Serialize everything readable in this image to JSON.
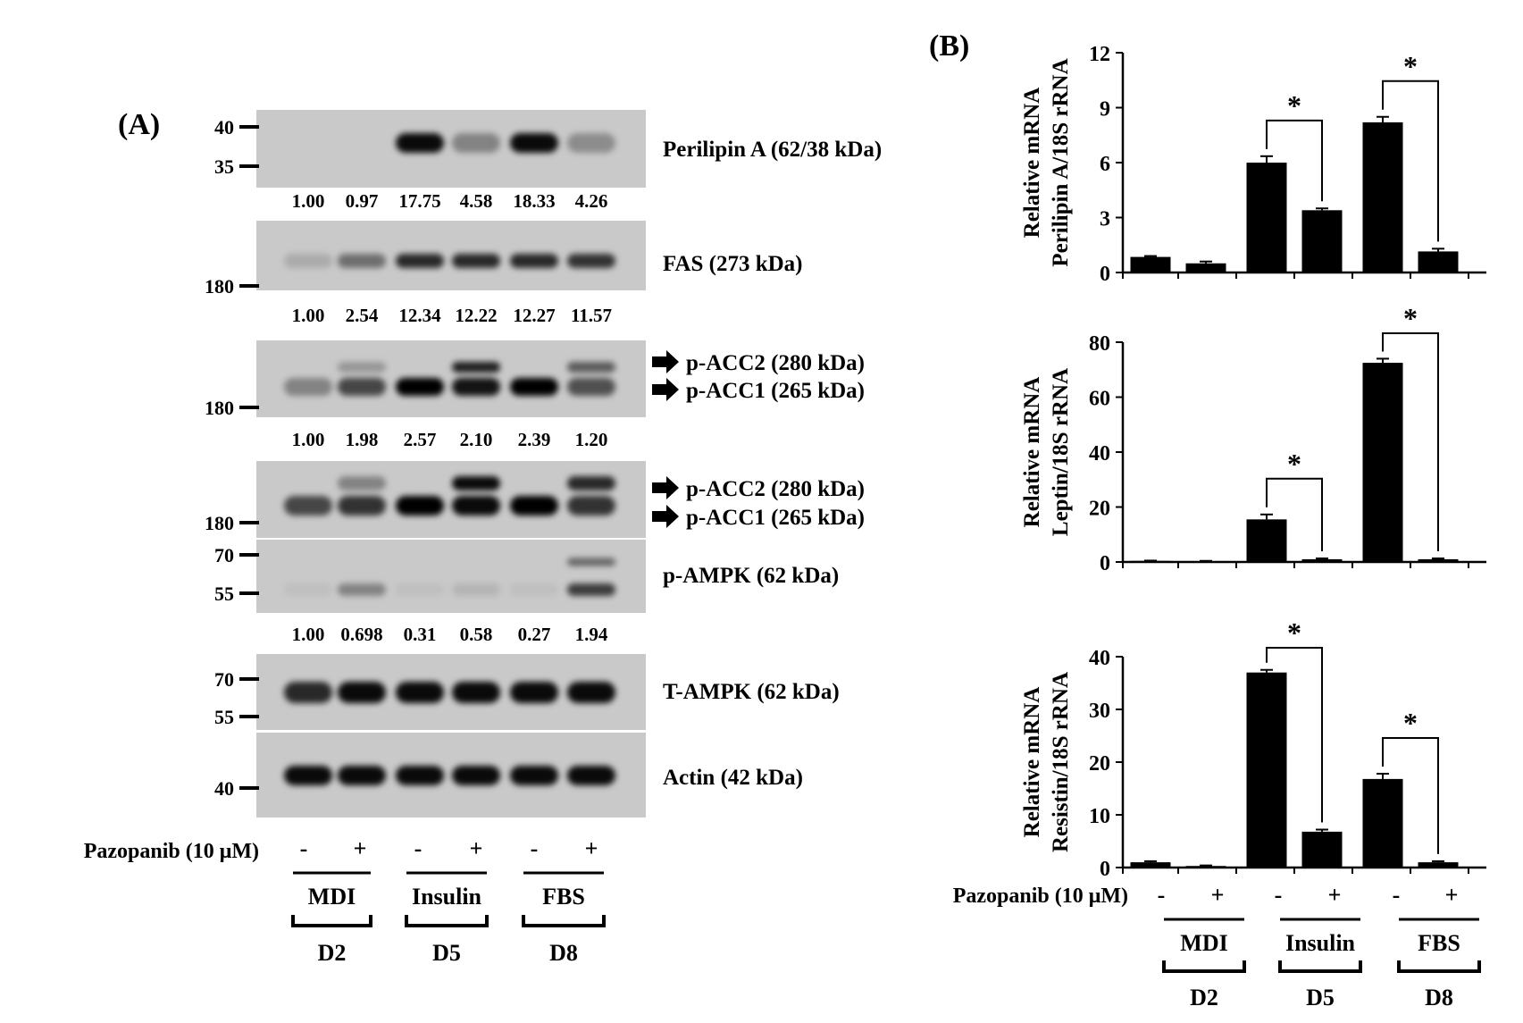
{
  "panel_a": {
    "label": "(A)",
    "blots": [
      {
        "name": "Perilipin A (62/38 kDa)",
        "markers": [
          "40",
          "35"
        ],
        "quant": [
          "1.00",
          "0.97",
          "17.75",
          "4.58",
          "18.33",
          "4.26"
        ],
        "intensity": [
          0.0,
          0.0,
          0.95,
          0.35,
          0.95,
          0.3
        ]
      },
      {
        "name": "FAS (273 kDa)",
        "markers": [
          "180"
        ],
        "quant": [
          "1.00",
          "2.54",
          "12.34",
          "12.22",
          "12.27",
          "11.57"
        ],
        "intensity": [
          0.15,
          0.45,
          0.8,
          0.8,
          0.8,
          0.75
        ]
      },
      {
        "name": "p-ACC2 (280 kDa)",
        "name2": "p-ACC1 (265 kDa)",
        "markers": [
          "180"
        ],
        "quant": [
          "1.00",
          "1.98",
          "2.57",
          "2.10",
          "2.39",
          "1.20"
        ],
        "intensity": [
          0.35,
          0.65,
          1.0,
          0.9,
          1.0,
          0.6
        ],
        "upper_intensity": [
          0.0,
          0.25,
          0.0,
          0.85,
          0.0,
          0.55
        ]
      },
      {
        "name": "p-ACC2 (280 kDa)",
        "name2": "p-ACC1 (265 kDa)",
        "markers": [
          "180"
        ],
        "intensity": [
          0.65,
          0.75,
          1.0,
          0.95,
          1.0,
          0.75
        ],
        "upper_intensity": [
          0.0,
          0.35,
          0.0,
          0.95,
          0.0,
          0.8
        ]
      },
      {
        "name": "p-AMPK (62 kDa)",
        "markers": [
          "70",
          "55"
        ],
        "quant": [
          "1.00",
          "0.698",
          "0.31",
          "0.58",
          "0.27",
          "1.94"
        ],
        "intensity": [
          0.05,
          0.35,
          0.05,
          0.1,
          0.05,
          0.7
        ],
        "upper_intensity": [
          0.0,
          0.0,
          0.0,
          0.0,
          0.0,
          0.5
        ]
      },
      {
        "name": "T-AMPK (62 kDa)",
        "markers": [
          "70",
          "55"
        ],
        "intensity": [
          0.8,
          0.95,
          0.95,
          0.95,
          0.95,
          0.95
        ]
      },
      {
        "name": "Actin (42 kDa)",
        "markers": [
          "40"
        ],
        "intensity": [
          0.95,
          0.95,
          0.95,
          0.95,
          0.95,
          0.95
        ]
      }
    ],
    "treatment_label": "Pazopanib (10 μM)",
    "signs": [
      "-",
      "+",
      "-",
      "+",
      "-",
      "+"
    ],
    "groups": [
      "MDI",
      "Insulin",
      "FBS"
    ],
    "days": [
      "D2",
      "D5",
      "D8"
    ]
  },
  "panel_b": {
    "label": "(B)",
    "treatment_label": "Pazopanib (10 μM)",
    "signs": [
      "-",
      "+",
      "-",
      "+",
      "-",
      "+"
    ],
    "groups": [
      "MDI",
      "Insulin",
      "FBS"
    ],
    "days": [
      "D2",
      "D5",
      "D8"
    ]
  },
  "chart_data": [
    {
      "type": "bar",
      "ylabel_line1": "Relative mRNA",
      "ylabel_line2": "Perilipin A/18S rRNA",
      "ylim": [
        0,
        12
      ],
      "yticks": [
        0,
        3,
        6,
        9,
        12
      ],
      "values": [
        0.85,
        0.5,
        6.0,
        3.4,
        8.2,
        1.15
      ],
      "errors": [
        0.05,
        0.1,
        0.35,
        0.1,
        0.3,
        0.15
      ],
      "significance": [
        {
          "from": 2,
          "to": 3,
          "label": "*"
        },
        {
          "from": 4,
          "to": 5,
          "label": "*"
        }
      ]
    },
    {
      "type": "bar",
      "ylabel_line1": "Relative mRNA",
      "ylabel_line2": "Leptin/18S rRNA",
      "ylim": [
        0,
        80
      ],
      "yticks": [
        0,
        20,
        40,
        60,
        80
      ],
      "values": [
        0.4,
        0.3,
        15.5,
        1.0,
        72.5,
        1.0
      ],
      "errors": [
        0.1,
        0.1,
        1.8,
        0.3,
        1.5,
        0.3
      ],
      "significance": [
        {
          "from": 2,
          "to": 3,
          "label": "*"
        },
        {
          "from": 4,
          "to": 5,
          "label": "*"
        }
      ]
    },
    {
      "type": "bar",
      "ylabel_line1": "Relative mRNA",
      "ylabel_line2": "Resistin/18S rRNA",
      "ylim": [
        0,
        40
      ],
      "yticks": [
        0,
        10,
        20,
        30,
        40
      ],
      "values": [
        1.0,
        0.3,
        37.0,
        6.8,
        16.8,
        1.0
      ],
      "errors": [
        0.2,
        0.1,
        0.5,
        0.4,
        1.0,
        0.2
      ],
      "significance": [
        {
          "from": 2,
          "to": 3,
          "label": "*"
        },
        {
          "from": 4,
          "to": 5,
          "label": "*"
        }
      ]
    }
  ]
}
